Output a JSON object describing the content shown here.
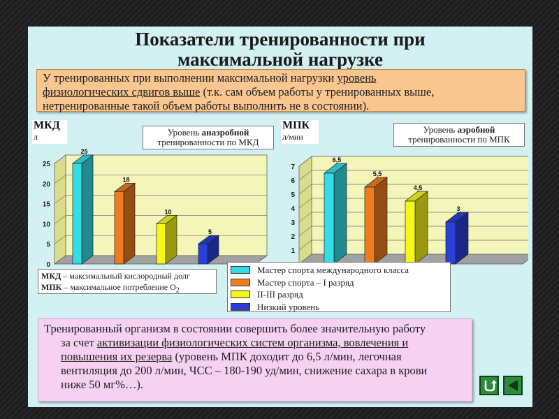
{
  "title_line1": "Показатели тренированности при",
  "title_line2": "максимальной нагрузке",
  "intro": {
    "line1_a": "У тренированных при выполнении максимальной нагрузки ",
    "line1_u": "уровень",
    "line2_u": "физиологических сдвигов выше",
    "line2_b": " (т.к. сам объем работы у тренированных выше,",
    "line3": "нетренированные такой объем работы выполнить не в состоянии)."
  },
  "chart_data": [
    {
      "type": "bar",
      "title": "Уровень анаэробной тренированности по МКД",
      "title_prefix": "Уровень ",
      "title_bold": "анаэробной",
      "title_suffix": "тренированности по МКД",
      "unit_main": "МКД",
      "unit_sub": "л",
      "categories": [
        "Мастер спорта международного класса",
        "Мастер спорта – I разряд",
        "II-III разряд",
        "Низкий уровень"
      ],
      "values": [
        25,
        18,
        10,
        5
      ],
      "value_labels": [
        "25",
        "18",
        "10",
        "5"
      ],
      "ylim": [
        0,
        25
      ],
      "yticks": [
        "0",
        "5",
        "10",
        "15",
        "20",
        "25"
      ],
      "grid": true
    },
    {
      "type": "bar",
      "title": "Уровень аэробной тренированности по МПК",
      "title_prefix": "Уровень ",
      "title_bold": "аэробной",
      "title_suffix": "тренированности по МПК",
      "unit_main": "МПК",
      "unit_sub": "л/мин",
      "categories": [
        "Мастер спорта международного класса",
        "Мастер спорта – I разряд",
        "II-III разряд",
        "Низкий уровень"
      ],
      "values": [
        6.5,
        5.5,
        4.5,
        3
      ],
      "value_labels": [
        "6,5",
        "5,5",
        "4,5",
        "3"
      ],
      "ylim": [
        0,
        7
      ],
      "yticks": [
        "0",
        "1",
        "2",
        "3",
        "4",
        "5",
        "6",
        "7"
      ],
      "grid": true
    }
  ],
  "abbr": {
    "mkd_b": "МКД",
    "mkd_t": " – максимальный кислородный долг",
    "mpk_b": "МПК",
    "mpk_t": " – максимальное потребление О",
    "mpk_sub": "2"
  },
  "legend": [
    {
      "label": "Мастер спорта международного класса",
      "color": "#36dde6"
    },
    {
      "label": "Мастер спорта – I разряд",
      "color": "#ee7d1e"
    },
    {
      "label": "II-III разряд",
      "color": "#f6f61a"
    },
    {
      "label": "Низкий уровень",
      "color": "#2a3fd6"
    }
  ],
  "outro": {
    "l1": "Тренированный организм в состоянии совершить более значительную работу",
    "l2_a": "за счет ",
    "l2_u": "активизации физиологических систем организма, вовлечения и",
    "l3_u": "повышения их резерва",
    "l3_b": " (уровень МПК доходит до 6,5 л/мин, легочная",
    "l4": "вентиляция до 200 л/мин, ЧСС – 180-190 уд/мин, снижение сахара в крови",
    "l5": "ниже 50 мг%…)."
  },
  "icons": {
    "home": "return-arrow-icon",
    "back": "left-triangle-icon"
  },
  "colors": {
    "slide_bg": "#d3f0f3",
    "intro_bg": "#f9c690",
    "outro_bg": "#f6d1f1",
    "plot_wall": "#f3f6b8",
    "plot_floor": "#a1a1a1"
  }
}
